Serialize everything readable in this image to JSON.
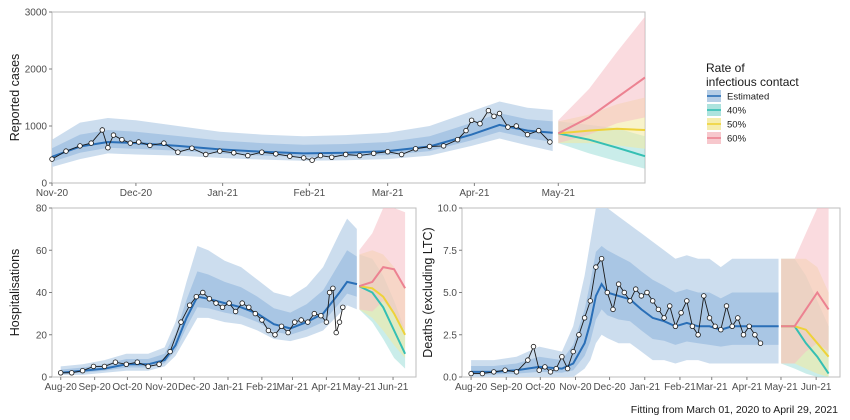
{
  "caption": "Fitting from March 01, 2020 to April 29, 2021",
  "legend": {
    "title_line1": "Rate of",
    "title_line2": "infectious contact",
    "items": [
      {
        "label": "Estimated",
        "fill": "#a9c6e2",
        "line": "#2a6fb7"
      },
      {
        "label": "40%",
        "fill": "#9fded8",
        "line": "#35bfb3"
      },
      {
        "label": "50%",
        "fill": "#f3ea9f",
        "line": "#eed23a"
      },
      {
        "label": "60%",
        "fill": "#f6bec4",
        "line": "#ec8291"
      }
    ]
  },
  "chart_data": [
    {
      "type": "line",
      "id": "cases",
      "ylabel": "Reported cases",
      "xlabel": "",
      "x_ticks": [
        {
          "label": "Nov-20",
          "day": 0
        },
        {
          "label": "Dec-20",
          "day": 30
        },
        {
          "label": "Jan-21",
          "day": 61
        },
        {
          "label": "Feb-21",
          "day": 92
        },
        {
          "label": "Mar-21",
          "day": 120
        },
        {
          "label": "Apr-21",
          "day": 151
        },
        {
          "label": "May-21",
          "day": 181
        }
      ],
      "xlim_days": [
        0,
        212
      ],
      "ylim": [
        0,
        3000
      ],
      "y_ticks": [
        0,
        1000,
        2000,
        3000
      ],
      "fit_end_day": 179,
      "observed": {
        "x": [
          0,
          5,
          10,
          14,
          18,
          20,
          22,
          25,
          28,
          31,
          35,
          40,
          45,
          50,
          55,
          60,
          65,
          70,
          75,
          80,
          85,
          90,
          93,
          96,
          100,
          105,
          110,
          115,
          120,
          125,
          130,
          135,
          140,
          145,
          148,
          150,
          153,
          156,
          158,
          160,
          163,
          166,
          170,
          174,
          178
        ],
        "y": [
          420,
          560,
          650,
          700,
          930,
          620,
          840,
          760,
          700,
          720,
          660,
          700,
          540,
          610,
          500,
          560,
          530,
          480,
          540,
          510,
          470,
          440,
          400,
          480,
          450,
          500,
          480,
          520,
          550,
          500,
          600,
          640,
          650,
          760,
          920,
          1100,
          1040,
          1270,
          1170,
          1220,
          980,
          1000,
          850,
          920,
          720
        ]
      },
      "estimated": {
        "x": [
          0,
          10,
          20,
          30,
          45,
          60,
          75,
          90,
          105,
          120,
          135,
          150,
          160,
          170,
          179
        ],
        "y": [
          460,
          640,
          720,
          700,
          650,
          590,
          550,
          520,
          530,
          560,
          640,
          850,
          1020,
          920,
          880
        ],
        "lower": [
          280,
          420,
          520,
          500,
          480,
          440,
          410,
          390,
          400,
          420,
          480,
          650,
          780,
          660,
          560
        ],
        "upper": [
          760,
          1060,
          1140,
          1100,
          1000,
          900,
          850,
          820,
          840,
          880,
          1000,
          1260,
          1430,
          1320,
          1280
        ]
      },
      "scenarios": [
        {
          "name": "40%",
          "x": [
            181,
            192,
            202,
            212
          ],
          "y": [
            870,
            760,
            620,
            470
          ],
          "lower": [
            700,
            520,
            380,
            250
          ],
          "upper": [
            1080,
            1020,
            960,
            820
          ]
        },
        {
          "name": "50%",
          "x": [
            181,
            192,
            202,
            212
          ],
          "y": [
            870,
            920,
            950,
            930
          ],
          "lower": [
            700,
            700,
            660,
            600
          ],
          "upper": [
            1080,
            1200,
            1380,
            1500
          ]
        },
        {
          "name": "60%",
          "x": [
            181,
            192,
            202,
            212
          ],
          "y": [
            870,
            1150,
            1500,
            1850
          ],
          "lower": [
            700,
            850,
            1050,
            1150
          ],
          "upper": [
            1100,
            1650,
            2300,
            2920
          ]
        }
      ]
    },
    {
      "type": "line",
      "id": "hospitalisations",
      "ylabel": "Hospitalisations",
      "xlabel": "",
      "x_ticks": [
        {
          "label": "Aug-20",
          "day": 0
        },
        {
          "label": "Sep-20",
          "day": 31
        },
        {
          "label": "Oct-20",
          "day": 61
        },
        {
          "label": "Nov-20",
          "day": 92
        },
        {
          "label": "Dec-20",
          "day": 122
        },
        {
          "label": "Jan-21",
          "day": 153
        },
        {
          "label": "Feb-21",
          "day": 184
        },
        {
          "label": "Mar-21",
          "day": 212
        },
        {
          "label": "Apr-21",
          "day": 243
        },
        {
          "label": "May-21",
          "day": 273
        },
        {
          "label": "Jun-21",
          "day": 304
        }
      ],
      "xlim_days": [
        -8,
        325
      ],
      "ylim": [
        0,
        80
      ],
      "y_ticks": [
        0,
        20,
        40,
        60,
        80
      ],
      "fit_end_day": 271,
      "observed": {
        "x": [
          0,
          10,
          20,
          30,
          40,
          50,
          60,
          70,
          80,
          90,
          100,
          110,
          118,
          124,
          130,
          136,
          142,
          148,
          154,
          160,
          166,
          172,
          178,
          184,
          190,
          196,
          202,
          208,
          214,
          220,
          226,
          232,
          238,
          243,
          246,
          249,
          252,
          255,
          258
        ],
        "y": [
          2,
          2,
          3,
          5,
          5,
          7,
          6,
          7,
          5,
          6,
          12,
          26,
          34,
          38,
          40,
          37,
          35,
          33,
          35,
          31,
          35,
          33,
          30,
          27,
          22,
          20,
          24,
          21,
          26,
          27,
          26,
          30,
          29,
          26,
          40,
          42,
          21,
          26,
          33
        ]
      },
      "estimated": {
        "x": [
          0,
          20,
          40,
          60,
          80,
          95,
          105,
          115,
          125,
          135,
          150,
          165,
          180,
          195,
          210,
          225,
          240,
          255,
          262,
          271
        ],
        "y": [
          2,
          3,
          4,
          6,
          6,
          8,
          15,
          28,
          38,
          37,
          35,
          33,
          30,
          25,
          23,
          26,
          30,
          40,
          45,
          44
        ],
        "lower": [
          1,
          1,
          2,
          3,
          3,
          5,
          10,
          19,
          28,
          28,
          26,
          25,
          22,
          18,
          17,
          19,
          22,
          30,
          34,
          32
        ],
        "upper": [
          5,
          6,
          8,
          11,
          11,
          14,
          26,
          45,
          62,
          60,
          55,
          52,
          46,
          40,
          38,
          43,
          52,
          68,
          75,
          70
        ]
      },
      "scenarios": [
        {
          "name": "40%",
          "x": [
            273,
            285,
            295,
            305,
            315
          ],
          "y": [
            43,
            40,
            33,
            22,
            11
          ],
          "lower": [
            32,
            26,
            18,
            9,
            4
          ],
          "upper": [
            58,
            56,
            48,
            36,
            22
          ]
        },
        {
          "name": "50%",
          "x": [
            273,
            285,
            295,
            305,
            315
          ],
          "y": [
            43,
            42,
            38,
            30,
            20
          ],
          "lower": [
            32,
            28,
            22,
            15,
            9
          ],
          "upper": [
            58,
            60,
            58,
            52,
            42
          ]
        },
        {
          "name": "60%",
          "x": [
            273,
            285,
            295,
            305,
            315
          ],
          "y": [
            43,
            45,
            52,
            51,
            42
          ],
          "lower": [
            32,
            31,
            36,
            30,
            22
          ],
          "upper": [
            60,
            68,
            80,
            80,
            78
          ]
        }
      ]
    },
    {
      "type": "line",
      "id": "deaths",
      "ylabel": "Deaths (excluding LTC)",
      "xlabel": "",
      "x_ticks": [
        {
          "label": "Aug-20",
          "day": 0
        },
        {
          "label": "Sep-20",
          "day": 31
        },
        {
          "label": "Oct-20",
          "day": 61
        },
        {
          "label": "Nov-20",
          "day": 92
        },
        {
          "label": "Dec-20",
          "day": 122
        },
        {
          "label": "Jan-21",
          "day": 153
        },
        {
          "label": "Feb-21",
          "day": 184
        },
        {
          "label": "Mar-21",
          "day": 212
        },
        {
          "label": "Apr-21",
          "day": 243
        },
        {
          "label": "May-21",
          "day": 273
        },
        {
          "label": "Jun-21",
          "day": 304
        }
      ],
      "xlim_days": [
        -8,
        325
      ],
      "ylim": [
        0,
        10
      ],
      "y_ticks": [
        0,
        2.5,
        5.0,
        7.5,
        10.0
      ],
      "fit_end_day": 271,
      "observed": {
        "x": [
          0,
          10,
          20,
          30,
          40,
          50,
          55,
          60,
          65,
          70,
          75,
          80,
          85,
          90,
          95,
          100,
          105,
          110,
          115,
          120,
          125,
          130,
          135,
          140,
          145,
          150,
          155,
          160,
          165,
          170,
          175,
          180,
          185,
          190,
          195,
          200,
          205,
          210,
          215,
          220,
          225,
          230,
          235,
          240,
          245,
          250,
          255
        ],
        "y": [
          0.2,
          0.2,
          0.3,
          0.4,
          0.3,
          1.0,
          1.8,
          0.4,
          0.6,
          0.3,
          0.5,
          1.2,
          0.5,
          1.5,
          2.5,
          3.5,
          4.5,
          6.5,
          7.0,
          5.0,
          4.0,
          5.5,
          5.0,
          4.5,
          5.2,
          4.8,
          5.0,
          4.5,
          4.0,
          3.5,
          4.2,
          3.0,
          3.8,
          4.5,
          3.0,
          2.5,
          4.8,
          3.5,
          3.0,
          2.8,
          4.2,
          3.0,
          3.5,
          2.5,
          3.0,
          2.5,
          2.0
        ]
      },
      "estimated": {
        "x": [
          0,
          20,
          40,
          60,
          80,
          90,
          100,
          105,
          110,
          115,
          120,
          130,
          140,
          150,
          160,
          170,
          180,
          190,
          200,
          210,
          220,
          230,
          240,
          250,
          260,
          271
        ],
        "y": [
          0.3,
          0.3,
          0.4,
          0.6,
          0.5,
          0.8,
          2.0,
          3.2,
          4.8,
          5.5,
          5.0,
          4.8,
          4.6,
          4.0,
          3.5,
          3.3,
          3.0,
          3.2,
          3.0,
          3.0,
          2.8,
          3.0,
          3.0,
          3.0,
          3.0,
          3.0
        ],
        "lower": [
          0,
          0,
          0,
          0,
          0,
          0,
          0.5,
          1.0,
          2.0,
          2.5,
          2.3,
          2.0,
          2.0,
          1.5,
          1.0,
          1.0,
          0.8,
          1.0,
          1.0,
          0.8,
          0.8,
          0.8,
          0.8,
          0.8,
          0.8,
          0.8
        ],
        "upper": [
          1.0,
          1.0,
          1.2,
          1.8,
          1.5,
          3.0,
          6.0,
          8.0,
          10.0,
          10.0,
          10.0,
          9.5,
          9.0,
          8.5,
          8.0,
          7.5,
          7.0,
          7.2,
          7.0,
          7.0,
          6.5,
          7.0,
          7.0,
          7.0,
          7.0,
          7.0
        ]
      },
      "scenarios": [
        {
          "name": "40%",
          "x": [
            273,
            285,
            295,
            305,
            315
          ],
          "y": [
            3.0,
            3.0,
            2.0,
            1.2,
            0.2
          ],
          "lower": [
            0.8,
            0.5,
            0.2,
            0,
            0
          ],
          "upper": [
            7.0,
            7.0,
            6.0,
            4.5,
            3.0
          ]
        },
        {
          "name": "50%",
          "x": [
            273,
            285,
            295,
            305,
            315
          ],
          "y": [
            3.0,
            3.0,
            2.8,
            2.0,
            1.2
          ],
          "lower": [
            0.8,
            0.8,
            0.5,
            0.2,
            0
          ],
          "upper": [
            7.0,
            7.0,
            7.0,
            6.5,
            5.0
          ]
        },
        {
          "name": "60%",
          "x": [
            273,
            285,
            295,
            305,
            315
          ],
          "y": [
            3.0,
            3.0,
            4.0,
            5.0,
            4.0
          ],
          "lower": [
            0.8,
            0.8,
            1.5,
            2.0,
            1.5
          ],
          "upper": [
            7.0,
            7.0,
            8.5,
            10.0,
            10.0
          ]
        }
      ]
    }
  ]
}
